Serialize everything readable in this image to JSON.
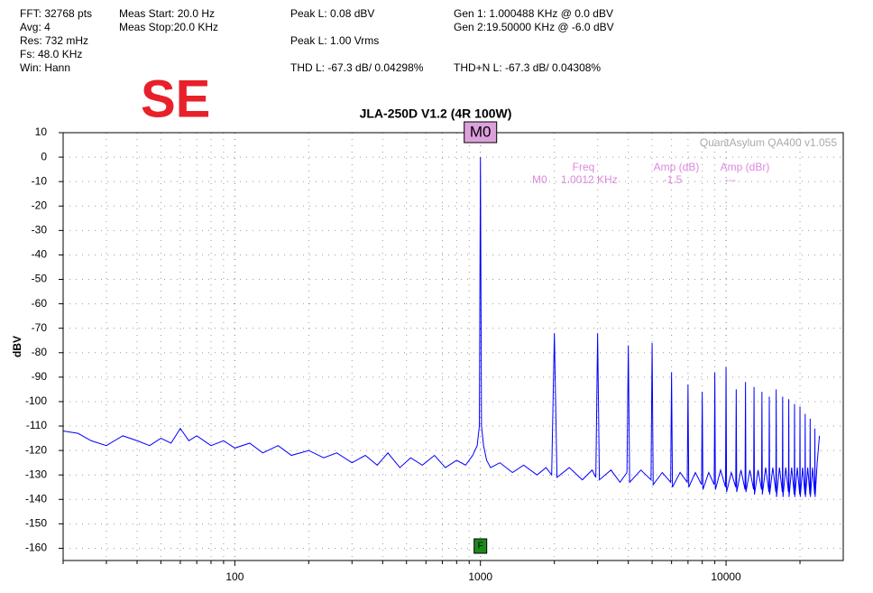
{
  "chart_data": {
    "type": "line",
    "title": "JLA-250D V1.2 (4R 100W)",
    "badge": "SE",
    "watermark": "QuantAsylum QA400 v1.055",
    "ylabel": "dBV",
    "info": [
      "FFT: 32768 pts",
      "Avg: 4",
      "Res: 732 mHz",
      "Fs: 48.0 KHz",
      "Win: Hann"
    ],
    "meas": [
      "Meas Start: 20.0 Hz",
      "Meas Stop:20.0 KHz"
    ],
    "peak": [
      "Peak L: 0.08 dBV",
      "Peak L: 1.00 Vrms"
    ],
    "gen": [
      "Gen 1: 1.000488 KHz @ 0.0  dBV",
      "Gen 2:19.50000 KHz @ -6.0  dBV"
    ],
    "thd": [
      "THD L: -67.3 dB/ 0.04298%",
      "THD+N L: -67.3 dB/ 0.04308%"
    ],
    "markers": [
      {
        "label": "M0",
        "x": 1000
      }
    ],
    "fundamental_marker": {
      "label": "F",
      "x": 1000
    },
    "marker_table": {
      "headers": [
        "Freq",
        "Amp (dB)",
        "Amp (dBr)"
      ],
      "rows": [
        [
          "M0",
          "1.0012 KHz",
          "-1.5",
          "---"
        ]
      ]
    },
    "log_x": true,
    "grid": true,
    "xlim": [
      20,
      30000
    ],
    "xticks": [
      100,
      1000,
      10000
    ],
    "xminorticks": [
      20,
      30,
      40,
      50,
      60,
      70,
      80,
      90,
      200,
      300,
      400,
      500,
      600,
      700,
      800,
      900,
      2000,
      3000,
      4000,
      5000,
      6000,
      7000,
      8000,
      9000,
      20000
    ],
    "ylim": [
      -165,
      10
    ],
    "yticks": [
      10,
      0,
      -10,
      -20,
      -30,
      -40,
      -50,
      -60,
      -70,
      -80,
      -90,
      -100,
      -110,
      -120,
      -130,
      -140,
      -150,
      -160
    ],
    "x": [
      20,
      23,
      26,
      30,
      35,
      40,
      45,
      50,
      55,
      60,
      65,
      70,
      80,
      90,
      100,
      115,
      130,
      150,
      170,
      200,
      230,
      260,
      300,
      340,
      380,
      420,
      470,
      520,
      580,
      650,
      720,
      800,
      870,
      930,
      970,
      990,
      1000,
      1010,
      1030,
      1060,
      1100,
      1200,
      1350,
      1500,
      1700,
      1850,
      1950,
      2000,
      2050,
      2300,
      2600,
      2850,
      2950,
      3000,
      3050,
      3400,
      3700,
      3950,
      4000,
      4050,
      4500,
      4950,
      5000,
      5050,
      5500,
      5950,
      6000,
      6050,
      6500,
      6950,
      7000,
      7050,
      7500,
      7950,
      8000,
      8050,
      8500,
      8950,
      9000,
      9050,
      9500,
      9950,
      10000,
      10050,
      10500,
      10950,
      11000,
      11050,
      11500,
      11950,
      12000,
      12050,
      12500,
      12950,
      13000,
      13050,
      13500,
      13950,
      14000,
      14050,
      14500,
      14950,
      15000,
      15050,
      15500,
      15950,
      16000,
      16050,
      16500,
      16950,
      17000,
      17050,
      17500,
      17950,
      18000,
      18050,
      18500,
      18950,
      19000,
      19050,
      19500,
      19950,
      20000,
      20050,
      20500,
      20950,
      21000,
      21050,
      21500,
      21950,
      22000,
      22050,
      22500,
      22950,
      23000,
      23050,
      23500,
      24000
    ],
    "series": [
      {
        "color": "#0000ff",
        "values": [
          -112,
          -113,
          -116,
          -118,
          -114,
          -116,
          -118,
          -115,
          -117,
          -111,
          -116,
          -114,
          -118,
          -116,
          -119,
          -117,
          -121,
          -118,
          -122,
          -120,
          -123,
          -121,
          -125,
          -122,
          -126,
          -121,
          -127,
          -123,
          -126,
          -122,
          -127,
          -124,
          -126,
          -122,
          -118,
          -110,
          0,
          -110,
          -118,
          -124,
          -127,
          -125,
          -129,
          -126,
          -130,
          -127,
          -130,
          -72,
          -131,
          -127,
          -132,
          -128,
          -131,
          -72,
          -132,
          -128,
          -133,
          -129,
          -77,
          -133,
          -128,
          -132,
          -76,
          -134,
          -129,
          -133,
          -88,
          -135,
          -129,
          -133,
          -93,
          -135,
          -129,
          -134,
          -96,
          -136,
          -129,
          -134,
          -88,
          -136,
          -128,
          -135,
          -86,
          -137,
          -129,
          -135,
          -95,
          -137,
          -128,
          -136,
          -92,
          -137,
          -128,
          -136,
          -94,
          -138,
          -128,
          -136,
          -96,
          -138,
          -127,
          -137,
          -98,
          -138,
          -127,
          -137,
          -95,
          -139,
          -127,
          -137,
          -98,
          -139,
          -127,
          -137,
          -99,
          -139,
          -127,
          -138,
          -101,
          -139,
          -127,
          -138,
          -102,
          -139,
          -127,
          -138,
          -105,
          -139,
          -127,
          -138,
          -107,
          -139,
          -127,
          -138,
          -111,
          -139,
          -125,
          -114
        ]
      }
    ]
  }
}
